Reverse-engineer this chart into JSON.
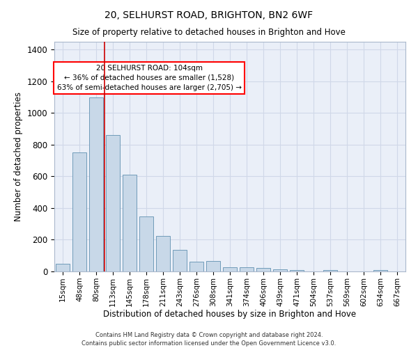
{
  "title": "20, SELHURST ROAD, BRIGHTON, BN2 6WF",
  "subtitle": "Size of property relative to detached houses in Brighton and Hove",
  "xlabel": "Distribution of detached houses by size in Brighton and Hove",
  "ylabel": "Number of detached properties",
  "footnote1": "Contains HM Land Registry data © Crown copyright and database right 2024.",
  "footnote2": "Contains public sector information licensed under the Open Government Licence v3.0.",
  "annotation_line1": "20 SELHURST ROAD: 104sqm",
  "annotation_line2": "← 36% of detached houses are smaller (1,528)",
  "annotation_line3": "63% of semi-detached houses are larger (2,705) →",
  "bar_color": "#c8d8e8",
  "bar_edge_color": "#6090b0",
  "grid_color": "#d0d8e8",
  "vline_color": "#cc0000",
  "categories": [
    "15sqm",
    "48sqm",
    "80sqm",
    "113sqm",
    "145sqm",
    "178sqm",
    "211sqm",
    "243sqm",
    "276sqm",
    "308sqm",
    "341sqm",
    "374sqm",
    "406sqm",
    "439sqm",
    "471sqm",
    "504sqm",
    "537sqm",
    "569sqm",
    "602sqm",
    "634sqm",
    "667sqm"
  ],
  "values": [
    50,
    750,
    1100,
    860,
    610,
    345,
    225,
    135,
    60,
    65,
    25,
    25,
    20,
    15,
    10,
    0,
    10,
    0,
    0,
    10,
    0
  ],
  "ylim": [
    0,
    1450
  ],
  "yticks": [
    0,
    200,
    400,
    600,
    800,
    1000,
    1200,
    1400
  ],
  "figsize": [
    6.0,
    5.0
  ],
  "dpi": 100
}
